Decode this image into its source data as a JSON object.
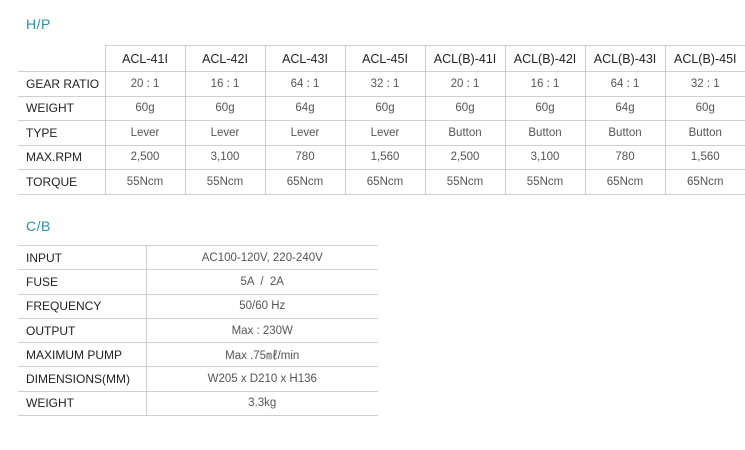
{
  "hp": {
    "title": "H/P",
    "columns": [
      "ACL-41I",
      "ACL-42I",
      "ACL-43I",
      "ACL-45I",
      "ACL(B)-41I",
      "ACL(B)-42I",
      "ACL(B)-43I",
      "ACL(B)-45I"
    ],
    "rows": [
      {
        "label": "GEAR RATIO",
        "values": [
          "20 : 1",
          "16 : 1",
          "64 : 1",
          "32 : 1",
          "20 : 1",
          "16 : 1",
          "64 : 1",
          "32 : 1"
        ]
      },
      {
        "label": "WEIGHT",
        "values": [
          "60g",
          "60g",
          "64g",
          "60g",
          "60g",
          "60g",
          "64g",
          "60g"
        ]
      },
      {
        "label": "TYPE",
        "values": [
          "Lever",
          "Lever",
          "Lever",
          "Lever",
          "Button",
          "Button",
          "Button",
          "Button"
        ]
      },
      {
        "label": "MAX.RPM",
        "values": [
          "2,500",
          "3,100",
          "780",
          "1,560",
          "2,500",
          "3,100",
          "780",
          "1,560"
        ]
      },
      {
        "label": "TORQUE",
        "values": [
          "55Ncm",
          "55Ncm",
          "65Ncm",
          "65Ncm",
          "55Ncm",
          "55Ncm",
          "65Ncm",
          "65Ncm"
        ]
      }
    ]
  },
  "cb": {
    "title": "C/B",
    "rows": [
      {
        "label": "INPUT",
        "value": "AC100-120V, 220-240V"
      },
      {
        "label": "FUSE",
        "value": "5A  /  2A"
      },
      {
        "label": "FREQUENCY",
        "value": "50/60 Hz"
      },
      {
        "label": "OUTPUT",
        "value": "Max : 230W"
      },
      {
        "label": "MAXIMUM PUMP",
        "value": "Max .75㎖/min"
      },
      {
        "label": "DIMENSIONS(MM)",
        "value": "W205 x D210 x H136"
      },
      {
        "label": "WEIGHT",
        "value": "3.3kg"
      }
    ]
  }
}
